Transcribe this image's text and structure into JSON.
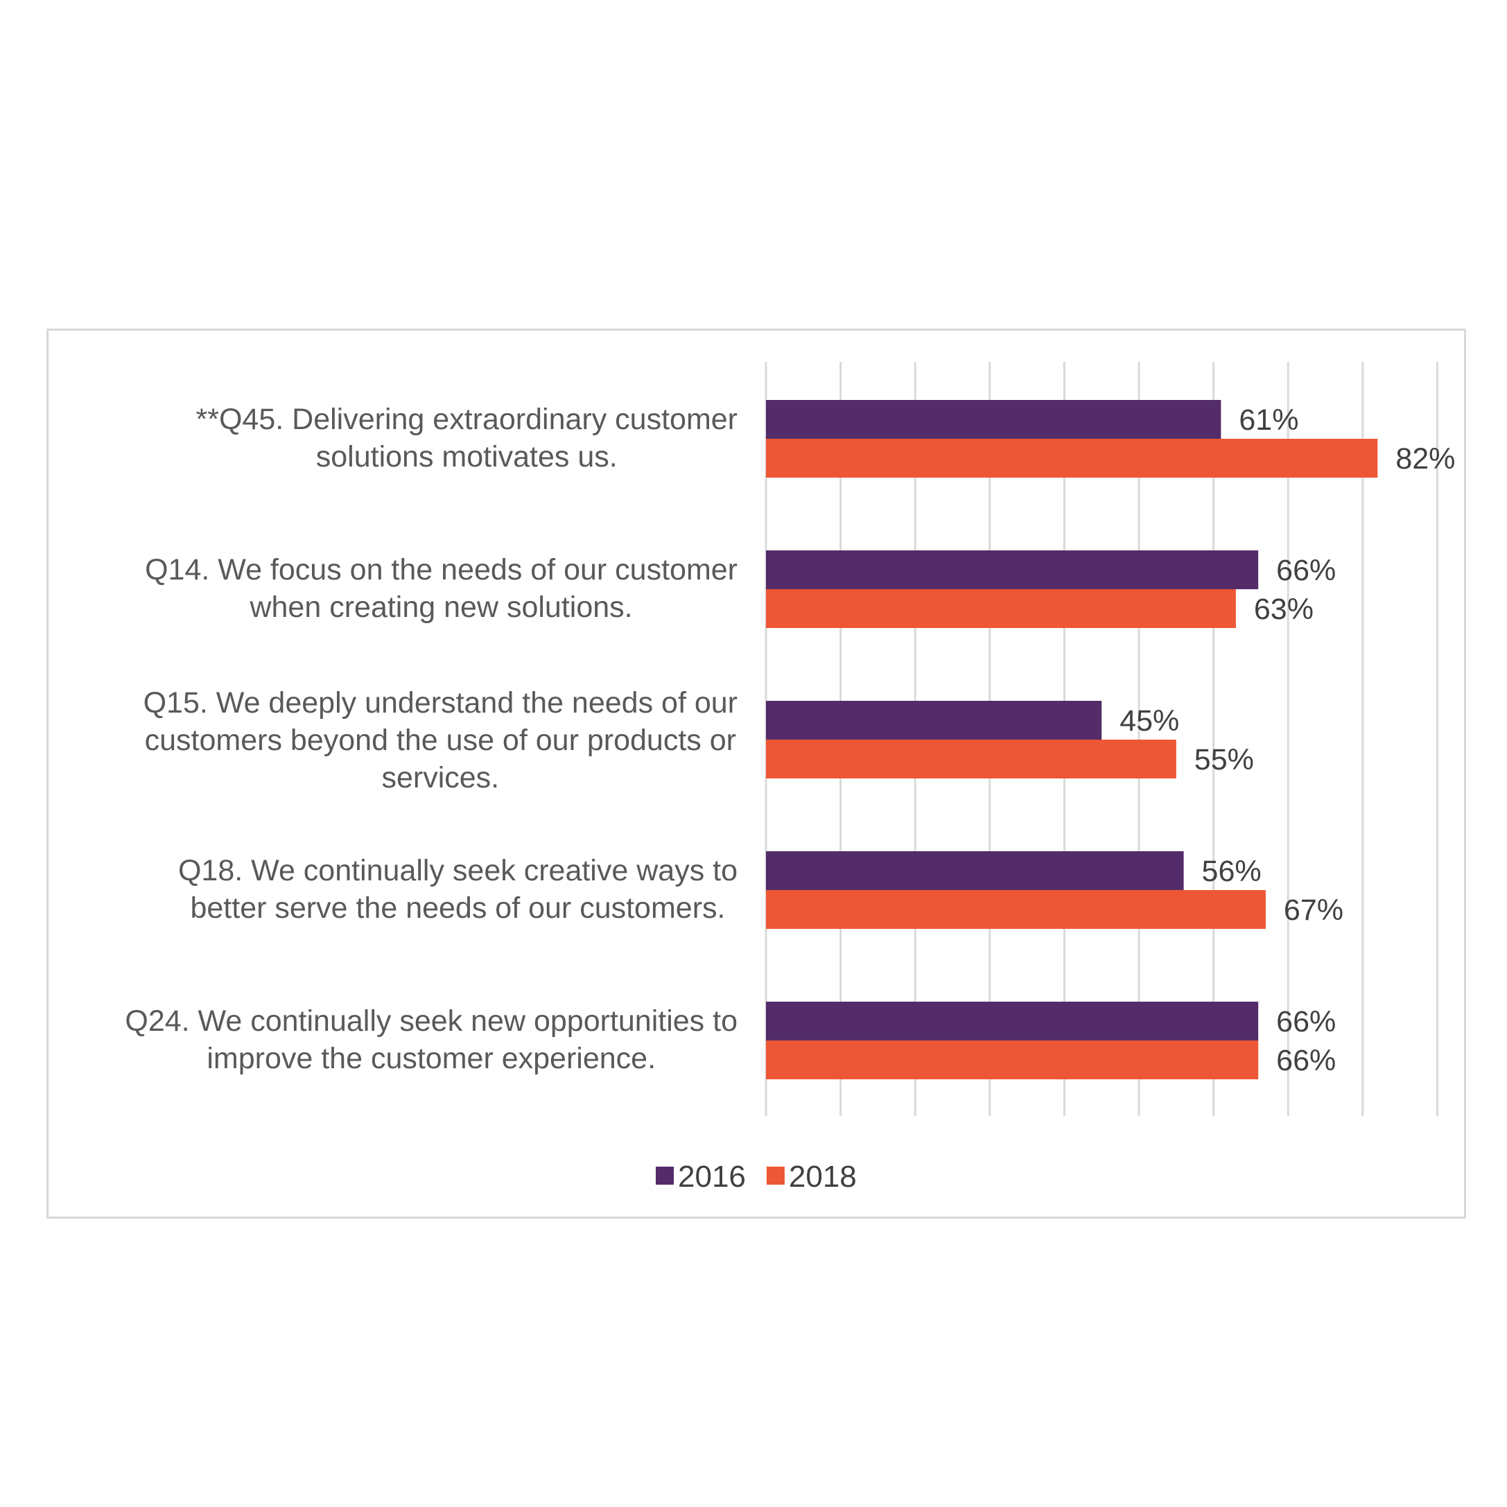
{
  "chart_data": {
    "type": "bar",
    "orientation": "horizontal",
    "categories": [
      [
        "**Q45. Delivering extraordinary customer",
        "solutions motivates us."
      ],
      [
        "Q14. We focus on the needs of our customer",
        "when creating new solutions."
      ],
      [
        "Q15. We deeply understand the needs of our",
        "customers beyond the use of our products or",
        "services."
      ],
      [
        "Q18. We continually seek creative ways to",
        "better serve the needs of our customers."
      ],
      [
        "Q24. We continually seek new opportunities to",
        "improve the customer experience."
      ]
    ],
    "series": [
      {
        "name": "2016",
        "color": "#542c69",
        "values": [
          61,
          66,
          45,
          56,
          66
        ],
        "labels": [
          "61%",
          "66%",
          "45%",
          "56%",
          "66%"
        ]
      },
      {
        "name": "2018",
        "color": "#ee5735",
        "values": [
          82,
          63,
          55,
          67,
          66
        ],
        "labels": [
          "82%",
          "63%",
          "55%",
          "67%",
          "66%"
        ]
      }
    ],
    "xlim": [
      0,
      90
    ],
    "grid": true,
    "legend_position": "bottom"
  }
}
